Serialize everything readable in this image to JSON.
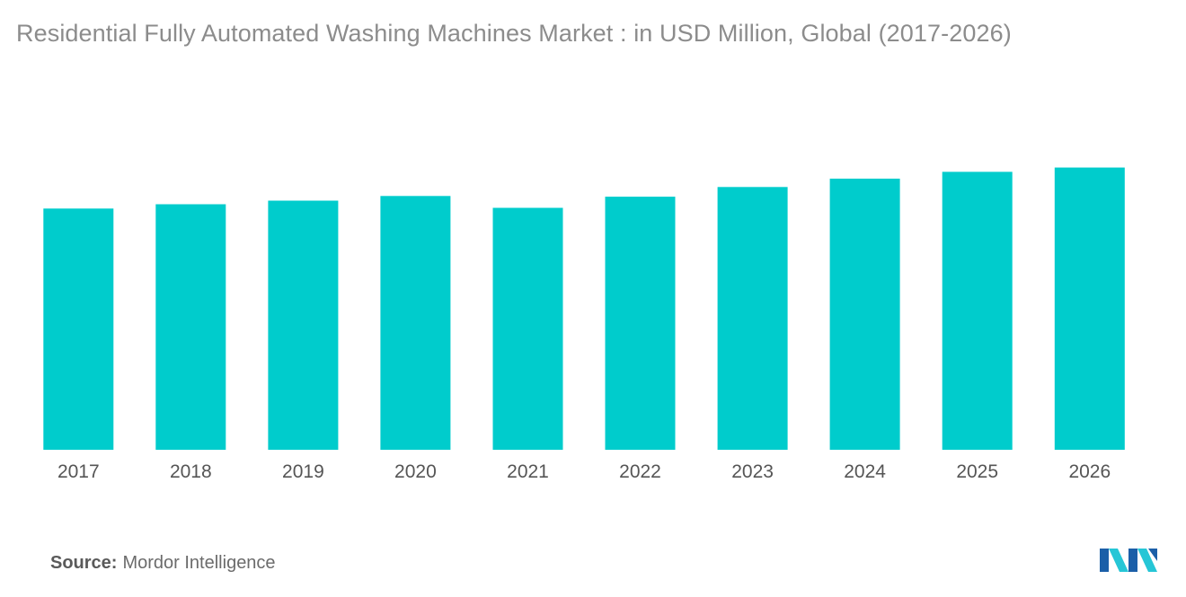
{
  "title": "Residential Fully Automated Washing Machines Market : in USD Million, Global (2017-2026)",
  "source": {
    "label": "Source:",
    "value": "Mordor Intelligence"
  },
  "logo": {
    "icon": "mordor-intelligence-logo-icon",
    "colors": [
      "#1b5fa8",
      "#26c6d6"
    ]
  },
  "chart_data": {
    "type": "bar",
    "title": "Residential Fully Automated Washing Machines Market : in USD Million, Global (2017-2026)",
    "categories": [
      "2017",
      "2018",
      "2019",
      "2020",
      "2021",
      "2022",
      "2023",
      "2024",
      "2025",
      "2026"
    ],
    "values": [
      67,
      68.2,
      69.2,
      70.5,
      67.2,
      70.3,
      73,
      75.3,
      77.2,
      78.4
    ],
    "ylim": [
      0,
      100
    ],
    "xlabel": "",
    "ylabel": "",
    "grid": false,
    "legend": "none",
    "bar_color": "#00cccc",
    "y_axis_shown": false
  }
}
